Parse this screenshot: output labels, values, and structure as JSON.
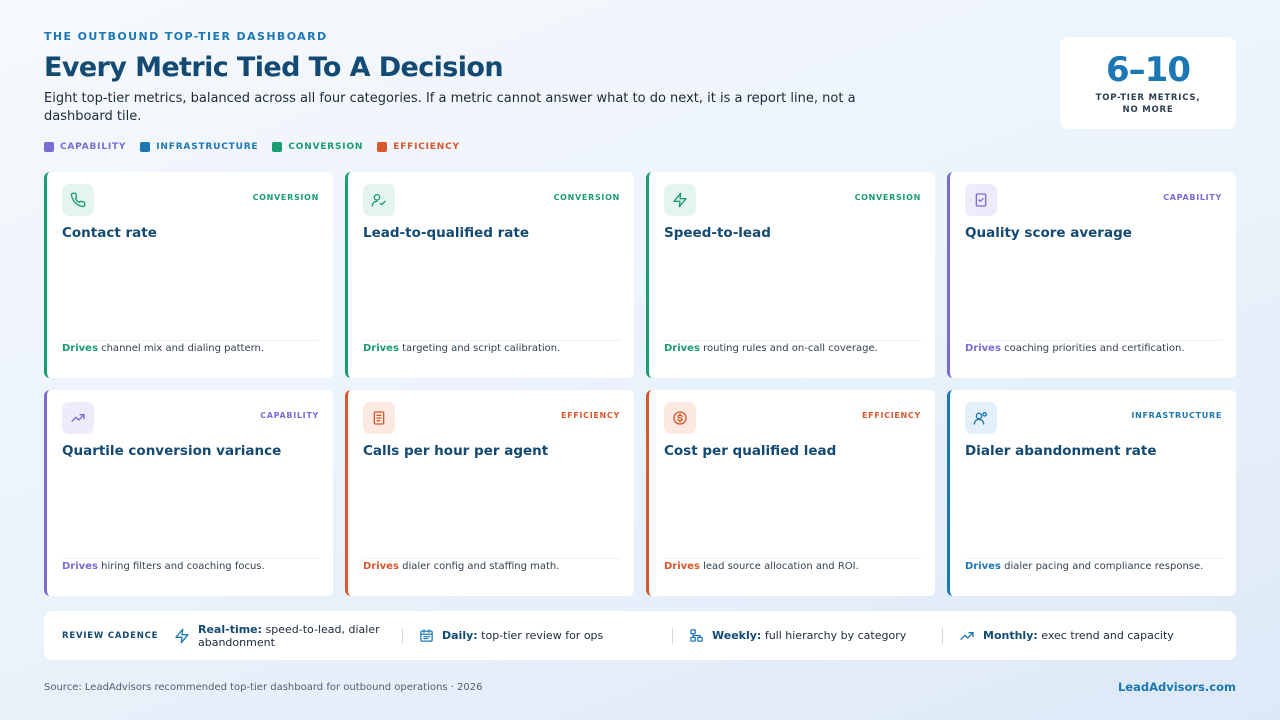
{
  "header": {
    "eyebrow": "THE OUTBOUND TOP-TIER DASHBOARD",
    "title": "Every Metric Tied To A Decision",
    "subtitle": "Eight top-tier metrics, balanced across all four categories. If a metric cannot answer what to do next, it is a report line, not a dashboard tile."
  },
  "kpi": {
    "value": "6–10",
    "label_line1": "TOP-TIER METRICS,",
    "label_line2": "NO MORE"
  },
  "legend": [
    {
      "label": "CAPABILITY",
      "color": "#7b6bd6"
    },
    {
      "label": "INFRASTRUCTURE",
      "color": "#1c78b5"
    },
    {
      "label": "CONVERSION",
      "color": "#1a9d72"
    },
    {
      "label": "EFFICIENCY",
      "color": "#d8582b"
    }
  ],
  "colors": {
    "capability": "#7b6bd6",
    "infrastructure": "#1c78b5",
    "conversion": "#1a9d72",
    "efficiency": "#d8582b"
  },
  "cards": [
    {
      "title": "Contact rate",
      "category": "CONVERSION",
      "icon": "phone-icon",
      "drives_label": "Drives",
      "drives_text": " channel mix and dialing pattern."
    },
    {
      "title": "Lead-to-qualified rate",
      "category": "CONVERSION",
      "icon": "user-check-icon",
      "drives_label": "Drives",
      "drives_text": " targeting and script calibration."
    },
    {
      "title": "Speed-to-lead",
      "category": "CONVERSION",
      "icon": "lightning-icon",
      "drives_label": "Drives",
      "drives_text": " routing rules and on-call coverage."
    },
    {
      "title": "Quality score average",
      "category": "CAPABILITY",
      "icon": "clipboard-check-icon",
      "drives_label": "Drives",
      "drives_text": " coaching priorities and certification."
    },
    {
      "title": "Quartile conversion variance",
      "category": "CAPABILITY",
      "icon": "trending-up-icon",
      "drives_label": "Drives",
      "drives_text": " hiring filters and coaching focus."
    },
    {
      "title": "Calls per hour per agent",
      "category": "EFFICIENCY",
      "icon": "document-icon",
      "drives_label": "Drives",
      "drives_text": " dialer config and staffing math."
    },
    {
      "title": "Cost per qualified lead",
      "category": "EFFICIENCY",
      "icon": "dollar-coin-icon",
      "drives_label": "Drives",
      "drives_text": " lead source allocation and ROI."
    },
    {
      "title": "Dialer abandonment rate",
      "category": "INFRASTRUCTURE",
      "icon": "users-icon",
      "drives_label": "Drives",
      "drives_text": " dialer pacing and compliance response."
    }
  ],
  "cadence": {
    "label": "REVIEW CADENCE",
    "items": [
      {
        "icon": "lightning-icon",
        "label": "Real-time:",
        "text": " speed-to-lead, dialer abandonment"
      },
      {
        "icon": "calendar-icon",
        "label": "Daily:",
        "text": " top-tier review for ops"
      },
      {
        "icon": "hierarchy-icon",
        "label": "Weekly:",
        "text": " full hierarchy by category"
      },
      {
        "icon": "trending-up-icon",
        "label": "Monthly:",
        "text": " exec trend and capacity"
      }
    ]
  },
  "footer": {
    "source": "Source: LeadAdvisors recommended top-tier dashboard for outbound operations · 2026",
    "brand": "LeadAdvisors.com"
  }
}
